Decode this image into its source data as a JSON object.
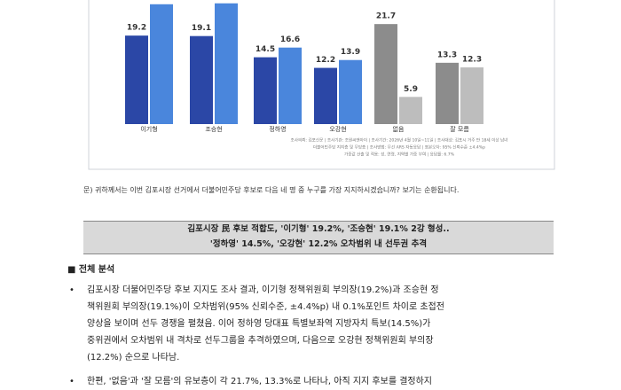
{
  "chart_data": {
    "type": "bar",
    "categories": [
      "이기형",
      "조승현",
      "정하영",
      "오강현",
      "없음",
      "잘 모름"
    ],
    "series": [
      {
        "values": [
          19.2,
          19.1,
          14.5,
          12.2,
          21.7,
          13.3
        ],
        "colors": [
          "#2b47a6",
          "#2b47a6",
          "#2b47a6",
          "#2b47a6",
          "#8c8c8c",
          "#8c8c8c"
        ]
      },
      {
        "values": [
          26.0,
          26.2,
          16.6,
          13.9,
          5.9,
          12.3
        ],
        "value_labels": [
          null,
          null,
          "16.6",
          "13.9",
          "5.9",
          "12.3"
        ],
        "colors": [
          "#4a86dc",
          "#4a86dc",
          "#4a86dc",
          "#4a86dc",
          "#bdbdbd",
          "#bdbdbd"
        ]
      }
    ],
    "note": [
      "조사의뢰: 김포신문 | 조사기관: 조원씨앤아이 | 조사기간: 2026년 4월 10일~11일 | 조사대상: 김포시 거주 만 18세 이상 남녀",
      "더불어민주당 지지층 및 무당층 | 조사방법: 무선 ARS 자동응답 | 표본오차: 95% 신뢰수준 ±4.4%p",
      "가중값 산출 및 적용: 성, 연령, 지역별 가중 부여 | 응답률: 6.7%"
    ]
  },
  "question": "문) 귀하께서는 이번 김포시장 선거에서 더불어민주당 후보로 다음 네 명 중 누구를 가장 지지하시겠습니까? 보기는 순환됩니다.",
  "headline": [
    "김포시장 民 후보 적합도, '이기형' 19.2%, '조승현' 19.1% 2강 형성..",
    "'정하영' 14.5%, '오강현' 12.2% 오차범위 내 선두권 추격"
  ],
  "section": "■ 전체 분석",
  "bullets": [
    [
      "김포시장 더불어민주당 후보 지지도 조사 결과, 이기형 정책위원회 부의장(19.2%)과 조승현 정",
      "책위원회 부의장(19.1%)이 오차범위(95% 신뢰수준, ±4.4%p) 내 0.1%포인트 차이로 초접전",
      "양상을 보이며 선두 경쟁을 펼쳤음. 이어 정하영 당대표 특별보좌역 지방자치 특보(14.5%)가",
      "중위권에서 오차범위 내 격차로 선두그룹을 추격하였으며, 다음으로 오강현 정책위원회 부의장",
      "(12.2%) 순으로 나타남."
    ],
    [
      "한편, '없음'과 '잘 모름'의 유보층이 각 21.7%, 13.3%로 나타나, 아직 지지 후보를 결정하지"
    ]
  ]
}
